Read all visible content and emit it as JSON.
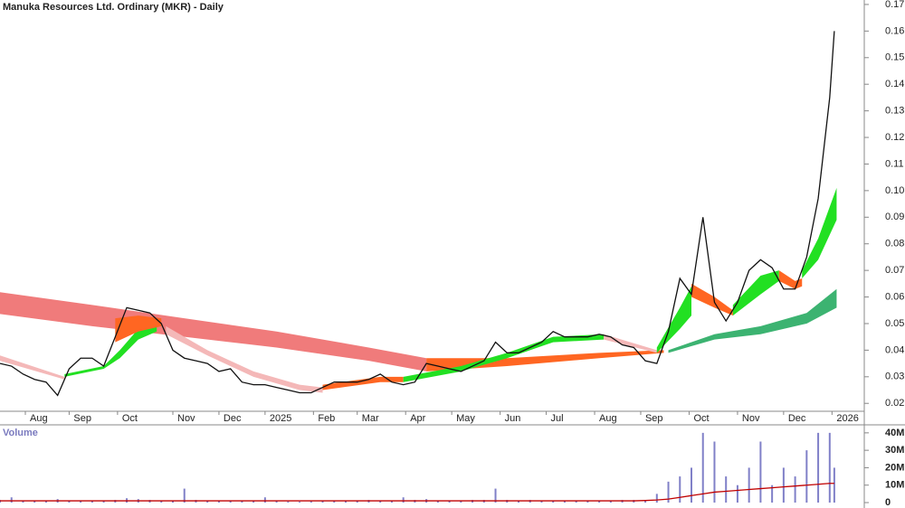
{
  "chart_data": [
    {
      "type": "line",
      "title": "Manuka Resources Ltd. Ordinary (MKR) - Daily",
      "x": [
        0,
        5,
        10,
        15,
        20,
        25,
        30,
        35,
        40,
        45,
        50,
        55,
        60,
        65,
        70,
        75,
        80,
        85,
        90,
        95,
        100,
        105,
        110,
        115,
        120,
        125,
        130,
        135,
        140,
        145,
        150,
        155,
        160,
        165,
        170,
        175,
        180,
        185,
        190,
        195,
        200,
        205,
        210,
        215,
        220,
        225,
        230,
        235,
        240,
        245,
        250,
        255,
        260,
        265,
        270,
        275,
        280,
        285,
        290,
        295,
        300,
        305,
        310,
        315,
        320,
        325,
        330,
        335,
        340,
        345,
        350,
        355,
        360,
        362
      ],
      "series": [
        {
          "color": "#111111",
          "values": [
            0.035,
            0.034,
            0.031,
            0.029,
            0.028,
            0.023,
            0.033,
            0.037,
            0.037,
            0.034,
            0.045,
            0.056,
            0.055,
            0.054,
            0.05,
            0.04,
            0.037,
            0.036,
            0.035,
            0.032,
            0.033,
            0.028,
            0.027,
            0.027,
            0.026,
            0.025,
            0.024,
            0.024,
            0.026,
            0.028,
            0.028,
            0.028,
            0.029,
            0.031,
            0.028,
            0.027,
            0.028,
            0.035,
            0.034,
            0.033,
            0.032,
            0.034,
            0.036,
            0.043,
            0.039,
            0.039,
            0.041,
            0.043,
            0.047,
            0.045,
            0.045,
            0.045,
            0.046,
            0.045,
            0.042,
            0.041,
            0.036,
            0.035,
            0.047,
            0.067,
            0.061,
            0.09,
            0.058,
            0.051,
            0.058,
            0.07,
            0.074,
            0.071,
            0.063,
            0.063,
            0.075,
            0.097,
            0.135,
            0.16
          ]
        }
      ],
      "bands": [
        {
          "color": "#f07b7b",
          "x": [
            0,
            40,
            80,
            120,
            160,
            185
          ],
          "upper": [
            0.0618,
            0.057,
            0.052,
            0.047,
            0.041,
            0.037
          ],
          "lower": [
            0.0536,
            0.049,
            0.045,
            0.041,
            0.036,
            0.032
          ]
        },
        {
          "color": "#ff6622",
          "x": [
            185,
            220,
            260,
            288
          ],
          "upper": [
            0.037,
            0.037,
            0.039,
            0.04
          ],
          "lower": [
            0.032,
            0.034,
            0.037,
            0.039
          ]
        },
        {
          "color": "#3cb371",
          "x": [
            290,
            310,
            330,
            350,
            363
          ],
          "upper": [
            0.04,
            0.046,
            0.049,
            0.054,
            0.063
          ],
          "lower": [
            0.039,
            0.044,
            0.046,
            0.05,
            0.056
          ]
        },
        {
          "color": "#f4b8b8",
          "x": [
            0,
            28
          ],
          "upper": [
            0.038,
            0.03
          ],
          "lower": [
            0.036,
            0.029
          ]
        },
        {
          "color": "#22e022",
          "x": [
            28,
            45,
            52,
            60,
            68
          ],
          "upper": [
            0.031,
            0.034,
            0.04,
            0.048,
            0.051
          ],
          "lower": [
            0.03,
            0.033,
            0.037,
            0.044,
            0.047
          ]
        },
        {
          "color": "#ff6622",
          "x": [
            50,
            60,
            70
          ],
          "upper": [
            0.052,
            0.053,
            0.052
          ],
          "lower": [
            0.043,
            0.047,
            0.049
          ]
        },
        {
          "color": "#f4b8b8",
          "x": [
            72,
            90,
            110,
            130,
            140
          ],
          "upper": [
            0.049,
            0.04,
            0.032,
            0.027,
            0.026
          ],
          "lower": [
            0.046,
            0.038,
            0.03,
            0.025,
            0.024
          ]
        },
        {
          "color": "#ff6622",
          "x": [
            140,
            165,
            175
          ],
          "upper": [
            0.027,
            0.03,
            0.03
          ],
          "lower": [
            0.025,
            0.028,
            0.028
          ]
        },
        {
          "color": "#22e022",
          "x": [
            175,
            200,
            220,
            240,
            262
          ],
          "upper": [
            0.03,
            0.034,
            0.039,
            0.045,
            0.046
          ],
          "lower": [
            0.028,
            0.032,
            0.037,
            0.043,
            0.044
          ]
        },
        {
          "color": "#f4b8b8",
          "x": [
            262,
            285
          ],
          "upper": [
            0.046,
            0.04
          ],
          "lower": [
            0.044,
            0.039
          ]
        },
        {
          "color": "#22e022",
          "x": [
            285,
            295,
            300
          ],
          "upper": [
            0.041,
            0.056,
            0.064
          ],
          "lower": [
            0.039,
            0.048,
            0.053
          ]
        },
        {
          "color": "#ff6622",
          "x": [
            300,
            310,
            318
          ],
          "upper": [
            0.065,
            0.06,
            0.055
          ],
          "lower": [
            0.06,
            0.056,
            0.053
          ]
        },
        {
          "color": "#22e022",
          "x": [
            318,
            330,
            338
          ],
          "upper": [
            0.057,
            0.068,
            0.07
          ],
          "lower": [
            0.053,
            0.061,
            0.066
          ]
        },
        {
          "color": "#ff6622",
          "x": [
            338,
            345,
            348
          ],
          "upper": [
            0.07,
            0.066,
            0.067
          ],
          "lower": [
            0.066,
            0.063,
            0.064
          ]
        },
        {
          "color": "#22e022",
          "x": [
            348,
            355,
            363
          ],
          "upper": [
            0.07,
            0.082,
            0.101
          ],
          "lower": [
            0.067,
            0.074,
            0.089
          ]
        }
      ],
      "xlim": [
        0,
        375
      ],
      "xticks": [
        {
          "value": 11,
          "label": "Aug"
        },
        {
          "value": 30,
          "label": "Sep"
        },
        {
          "value": 51,
          "label": "Oct"
        },
        {
          "value": 75,
          "label": "Nov"
        },
        {
          "value": 95,
          "label": "Dec"
        },
        {
          "value": 115,
          "label": "2025"
        },
        {
          "value": 136,
          "label": "Feb"
        },
        {
          "value": 155,
          "label": "Mar"
        },
        {
          "value": 176,
          "label": "Apr"
        },
        {
          "value": 196,
          "label": "May"
        },
        {
          "value": 217,
          "label": "Jun"
        },
        {
          "value": 237,
          "label": "Jul"
        },
        {
          "value": 258,
          "label": "Aug"
        },
        {
          "value": 278,
          "label": "Sep"
        },
        {
          "value": 299,
          "label": "Oct"
        },
        {
          "value": 320,
          "label": "Nov"
        },
        {
          "value": 340,
          "label": "Dec"
        },
        {
          "value": 361,
          "label": "2026"
        }
      ],
      "ylim": [
        0.016,
        0.171
      ],
      "yticks": [
        0.02,
        0.03,
        0.04,
        0.05,
        0.06,
        0.07,
        0.08,
        0.09,
        {
          "value": 0.1,
          "label": "0.10"
        },
        0.11,
        0.12,
        0.13,
        0.14,
        0.15,
        0.16,
        0.17
      ]
    },
    {
      "type": "bar",
      "title": "Volume",
      "color": "#8080c8",
      "x": [
        0,
        5,
        10,
        15,
        20,
        25,
        30,
        35,
        40,
        45,
        50,
        55,
        60,
        65,
        70,
        75,
        80,
        85,
        90,
        95,
        100,
        105,
        110,
        115,
        120,
        125,
        130,
        135,
        140,
        145,
        150,
        155,
        160,
        165,
        170,
        175,
        180,
        185,
        190,
        195,
        200,
        205,
        210,
        215,
        220,
        225,
        230,
        235,
        240,
        245,
        250,
        255,
        260,
        265,
        270,
        275,
        280,
        285,
        290,
        295,
        300,
        305,
        310,
        315,
        320,
        325,
        330,
        335,
        340,
        345,
        350,
        355,
        360,
        362
      ],
      "values": [
        1500000,
        3000000,
        1000000,
        800000,
        1000000,
        2000000,
        1200000,
        1000000,
        900000,
        1000000,
        1500000,
        2500000,
        2000000,
        1500000,
        1000000,
        1200000,
        8000000,
        1500000,
        1000000,
        1000000,
        1000000,
        1200000,
        800000,
        3000000,
        800000,
        600000,
        500000,
        700000,
        900000,
        1000000,
        800000,
        1000000,
        1500000,
        1200000,
        1000000,
        3000000,
        1500000,
        2000000,
        1000000,
        1200000,
        1000000,
        1500000,
        1500000,
        8000000,
        1500000,
        1200000,
        1500000,
        1000000,
        1200000,
        1000000,
        1000000,
        1200000,
        1000000,
        900000,
        1500000,
        1500000,
        1000000,
        5000000,
        12000000,
        15000000,
        20000000,
        40000000,
        35000000,
        15000000,
        10000000,
        20000000,
        35000000,
        10000000,
        20000000,
        15000000,
        30000000,
        40000000,
        40000000,
        20000000
      ],
      "average": {
        "color": "#c00000",
        "values": [
          1000000,
          1000000,
          1000000,
          1000000,
          1000000,
          1000000,
          1000000,
          1000000,
          1000000,
          1000000,
          1000000,
          1000000,
          1000000,
          1000000,
          1000000,
          1000000,
          1000000,
          1000000,
          1000000,
          1000000,
          1000000,
          1000000,
          1000000,
          1000000,
          1000000,
          1000000,
          1000000,
          1000000,
          1000000,
          1000000,
          1000000,
          1000000,
          1000000,
          1000000,
          1000000,
          1000000,
          1000000,
          1000000,
          1000000,
          1000000,
          1000000,
          1000000,
          1000000,
          1000000,
          1000000,
          1000000,
          1000000,
          1000000,
          1000000,
          1000000,
          1000000,
          1000000,
          1000000,
          1000000,
          1000000,
          1000000,
          1200000,
          1500000,
          2000000,
          3000000,
          4000000,
          5000000,
          6000000,
          6500000,
          7000000,
          7500000,
          8000000,
          8500000,
          9000000,
          9500000,
          10000000,
          10500000,
          11000000,
          11000000
        ]
      },
      "xlim": [
        0,
        375
      ],
      "ylim": [
        0,
        42000000
      ],
      "yticks": [
        0,
        {
          "value": 10000000,
          "label": "10M"
        },
        {
          "value": 20000000,
          "label": "20M"
        },
        {
          "value": 30000000,
          "label": "30M"
        },
        {
          "value": 40000000,
          "label": "40M"
        }
      ]
    }
  ]
}
